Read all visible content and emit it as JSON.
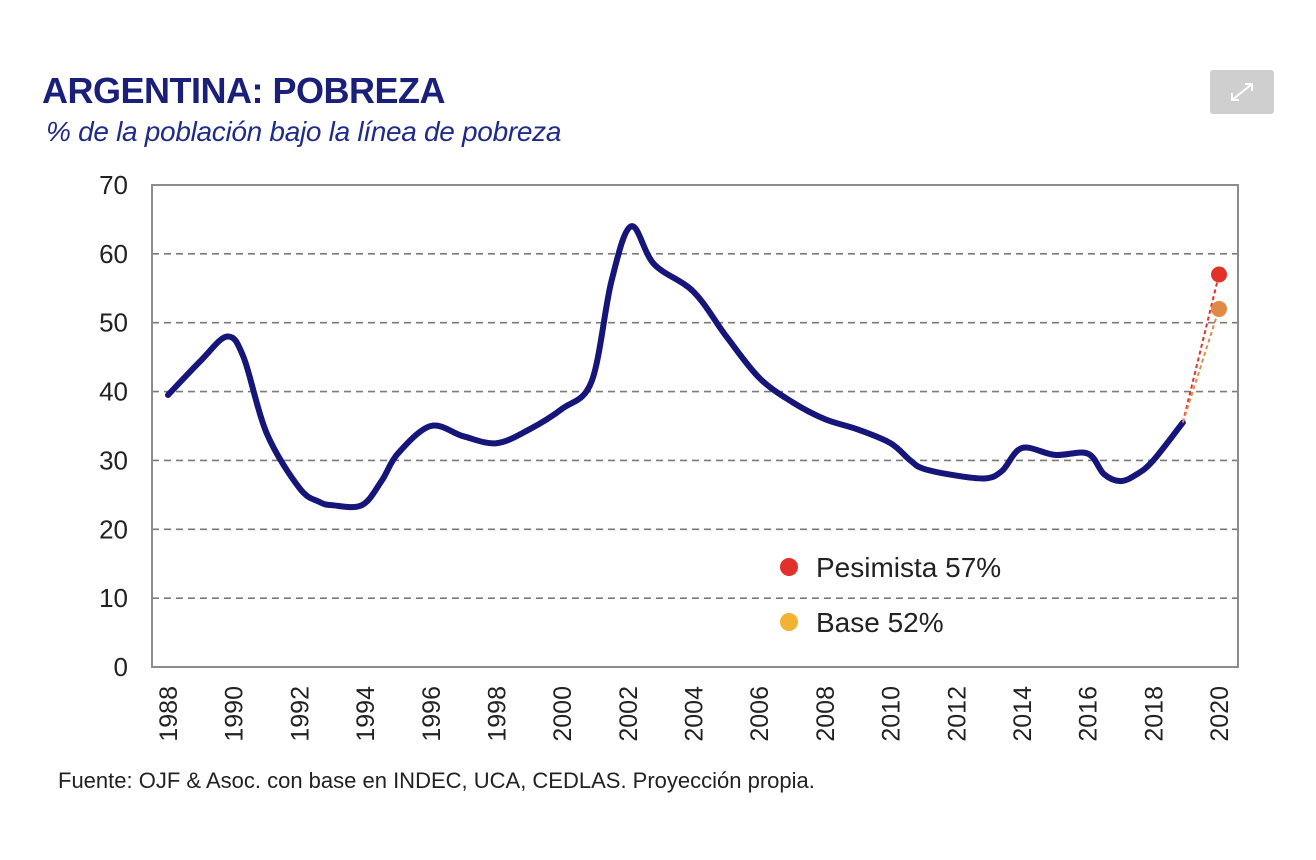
{
  "colors": {
    "title": "#1a1f7a",
    "subtitle": "#1f2b8a",
    "line": "#16167a",
    "grid": "#7a7a7a",
    "pessimistic": "#e2302b",
    "base": "#f2b233",
    "base_point": "#e08a45",
    "axis_text": "#222222"
  },
  "toolbar": {
    "expand_icon": "expand-arrows-icon"
  },
  "source_text": "Fuente: OJF & Asoc. con base en INDEC, UCA, CEDLAS. Proyección propia.",
  "chart_data": {
    "type": "line",
    "title": "ARGENTINA: POBREZA",
    "subtitle": "% de la población bajo la línea de pobreza",
    "xlabel": "",
    "ylabel": "",
    "xlim": [
      1988,
      2020
    ],
    "ylim": [
      0,
      70
    ],
    "grid": true,
    "x_ticks": [
      1988,
      1990,
      1992,
      1994,
      1996,
      1998,
      2000,
      2002,
      2004,
      2006,
      2008,
      2010,
      2012,
      2014,
      2016,
      2018,
      2020
    ],
    "y_ticks": [
      0,
      10,
      20,
      30,
      40,
      50,
      60,
      70
    ],
    "series": [
      {
        "x": [
          1988,
          1989,
          1989.8,
          1990.3,
          1991,
          1992,
          1992.6,
          1993,
          1993.9,
          1994.5,
          1995,
          1996,
          1997,
          1998,
          1999,
          2000,
          2000.9,
          2001.5,
          2002.1,
          2002.8,
          2004,
          2005,
          2006,
          2007,
          2008,
          2009,
          2010,
          2010.6,
          2011,
          2012,
          2012.9,
          2013.4,
          2014,
          2015,
          2016,
          2016.5,
          2017,
          2017.5,
          2018,
          2018.9
        ],
        "values": [
          39.5,
          44.5,
          48.0,
          45.0,
          34.0,
          26.0,
          24.0,
          23.5,
          23.5,
          27.0,
          31.0,
          35.0,
          33.5,
          32.5,
          34.5,
          37.5,
          41.5,
          56.0,
          64.0,
          58.5,
          54.5,
          48.0,
          42.0,
          38.5,
          36.0,
          34.5,
          32.5,
          30.0,
          28.8,
          27.8,
          27.4,
          28.5,
          31.8,
          30.8,
          31.0,
          28.0,
          27.0,
          28.0,
          30.0,
          35.5
        ]
      }
    ],
    "projections": [
      {
        "name": "Pesimista",
        "x": 2020,
        "value": 57,
        "from_x": 2018.9,
        "from_value": 35.5
      },
      {
        "name": "Base",
        "x": 2020,
        "value": 52,
        "from_x": 2018.9,
        "from_value": 35.5
      }
    ],
    "legend": {
      "placement": "bottom-right",
      "items": [
        {
          "label": "Pesimista 57%",
          "color_key": "pessimistic"
        },
        {
          "label": "Base 52%",
          "color_key": "base"
        }
      ]
    }
  }
}
